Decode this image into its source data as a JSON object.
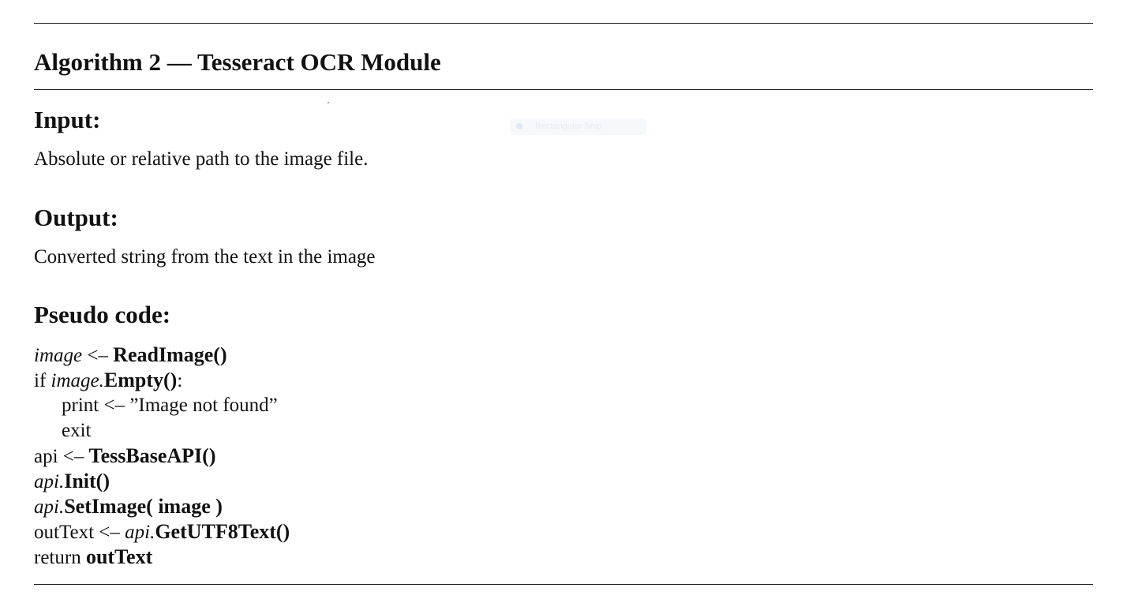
{
  "algorithm": {
    "title": "Algorithm 2 — Tesseract OCR Module"
  },
  "sections": {
    "input": {
      "heading": "Input:",
      "text": "Absolute or relative path to the image file."
    },
    "output": {
      "heading": "Output:",
      "text": "Converted string from the text in the image"
    },
    "pseudo": {
      "heading": "Pseudo code:"
    }
  },
  "code": {
    "line1": {
      "var": "image",
      "op": " <– ",
      "call": "ReadImage()"
    },
    "line2": {
      "kw": "if ",
      "var": "image.",
      "call": "Empty()",
      "tail": ":"
    },
    "line3": {
      "text": "print <– ”Image not found”"
    },
    "line4": {
      "text": "exit"
    },
    "line5": {
      "plain": "api <– ",
      "call": "TessBaseAPI()"
    },
    "line6": {
      "var": "api.",
      "call": "Init()"
    },
    "line7": {
      "var": "api.",
      "call": "SetImage( image )"
    },
    "line8": {
      "plain": "outText <– ",
      "var": "api.",
      "call": "GetUTF8Text()"
    },
    "line9": {
      "plain": "return ",
      "call": "outText"
    }
  },
  "overlay": {
    "label": "Rectangular Snip"
  }
}
